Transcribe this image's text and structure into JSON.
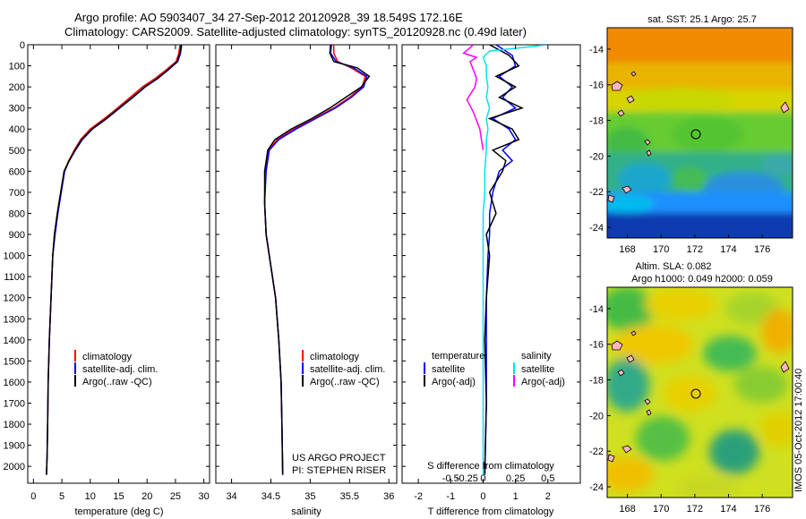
{
  "header": {
    "line1": "Argo profile: AO 5903407_34 27-Sep-2012 20120928_39 18.549S 172.16E",
    "line2": "Climatology: CARS2009. Satellite-adjusted climatology: synTS_20120928.nc (0.49d later)"
  },
  "colors": {
    "climatology": "#ff0000",
    "satellite": "#0000ff",
    "argo": "#000000",
    "salinity_satellite": "#00e5ee",
    "salinity_argo": "#ff00ff"
  },
  "chart_data": [
    {
      "type": "line",
      "name": "temperature",
      "xlabel": "temperature (deg C)",
      "ylabel": "",
      "xlim": [
        -1,
        31
      ],
      "ylim": [
        2080,
        0
      ],
      "xticks": [
        0,
        5,
        10,
        15,
        20,
        25,
        30
      ],
      "yticks": [
        0,
        100,
        200,
        300,
        400,
        500,
        600,
        700,
        800,
        900,
        1000,
        1100,
        1200,
        1300,
        1400,
        1500,
        1600,
        1700,
        1800,
        1900,
        2000
      ],
      "legend": [
        "climatology",
        "satellite-adj. clim.",
        "Argo(..raw -QC)"
      ],
      "series": [
        {
          "name": "climatology",
          "color": "#ff0000",
          "x": [
            25.8,
            25.6,
            25.1,
            23.3,
            21.4,
            19.2,
            17.0,
            14.8,
            12.5,
            10.0,
            8.3,
            7.2,
            6.2,
            5.4,
            4.8,
            4.2,
            3.7,
            3.4,
            3.1,
            2.8,
            2.6,
            2.5,
            2.4,
            2.3
          ],
          "y": [
            0,
            40,
            80,
            120,
            160,
            200,
            250,
            300,
            350,
            400,
            450,
            500,
            550,
            600,
            700,
            800,
            900,
            1000,
            1200,
            1400,
            1600,
            1800,
            1950,
            2040
          ]
        },
        {
          "name": "satellite-adj. clim.",
          "color": "#0000ff",
          "x": [
            26.1,
            25.9,
            25.4,
            23.7,
            21.9,
            19.7,
            17.5,
            15.2,
            12.9,
            10.4,
            8.6,
            7.4,
            6.3,
            5.5,
            4.9,
            4.3,
            3.8,
            3.4,
            3.1,
            2.8,
            2.6,
            2.5,
            2.4,
            2.3
          ],
          "y": [
            0,
            40,
            80,
            120,
            160,
            200,
            250,
            300,
            350,
            400,
            450,
            500,
            550,
            600,
            700,
            800,
            900,
            1000,
            1200,
            1400,
            1600,
            1800,
            1950,
            2040
          ]
        },
        {
          "name": "Argo(..raw -QC)",
          "color": "#000000",
          "x": [
            26.0,
            25.8,
            25.3,
            23.6,
            21.8,
            19.6,
            17.4,
            15.1,
            12.8,
            10.3,
            8.5,
            7.3,
            6.3,
            5.4,
            4.8,
            4.2,
            3.7,
            3.4,
            3.1,
            2.8,
            2.6,
            2.5,
            2.4,
            2.3
          ],
          "y": [
            0,
            40,
            80,
            120,
            160,
            200,
            250,
            300,
            350,
            400,
            450,
            500,
            550,
            600,
            700,
            800,
            900,
            1000,
            1200,
            1400,
            1600,
            1800,
            1950,
            2040
          ]
        }
      ]
    },
    {
      "type": "line",
      "name": "salinity",
      "xlabel": "salinity",
      "xlim": [
        33.8,
        36.1
      ],
      "ylim": [
        2080,
        0
      ],
      "xticks": [
        34,
        34.5,
        35,
        35.5,
        36
      ],
      "legend": [
        "climatology",
        "satellite-adj. clim.",
        "Argo(..raw -QC)"
      ],
      "annotation": [
        "US ARGO PROJECT",
        "PI: STEPHEN RISER"
      ],
      "series": [
        {
          "name": "climatology",
          "color": "#ff0000",
          "x": [
            35.3,
            35.3,
            35.35,
            35.52,
            35.7,
            35.66,
            35.5,
            35.3,
            35.05,
            34.8,
            34.58,
            34.47,
            34.43,
            34.42,
            34.44,
            34.48,
            34.52,
            34.56,
            34.6,
            34.63,
            34.64,
            34.65
          ],
          "y": [
            0,
            40,
            80,
            110,
            150,
            200,
            250,
            300,
            350,
            400,
            450,
            500,
            600,
            750,
            900,
            1000,
            1100,
            1200,
            1400,
            1600,
            1800,
            2040
          ]
        },
        {
          "name": "satellite-adj. clim.",
          "color": "#0000ff",
          "x": [
            35.27,
            35.26,
            35.33,
            35.55,
            35.72,
            35.68,
            35.52,
            35.32,
            35.07,
            34.82,
            34.6,
            34.48,
            34.44,
            34.42,
            34.44,
            34.48,
            34.52,
            34.56,
            34.6,
            34.63,
            34.64,
            34.65
          ],
          "y": [
            0,
            40,
            80,
            110,
            150,
            200,
            250,
            300,
            350,
            400,
            450,
            500,
            600,
            750,
            900,
            1000,
            1100,
            1200,
            1400,
            1600,
            1800,
            2040
          ]
        },
        {
          "name": "Argo(..raw -QC)",
          "color": "#000000",
          "x": [
            35.26,
            35.25,
            35.3,
            35.6,
            35.75,
            35.65,
            35.45,
            35.25,
            35.02,
            34.76,
            34.55,
            34.46,
            34.42,
            34.42,
            34.44,
            34.48,
            34.52,
            34.56,
            34.6,
            34.63,
            34.64,
            34.65
          ],
          "y": [
            0,
            40,
            80,
            110,
            150,
            200,
            250,
            300,
            350,
            400,
            450,
            500,
            600,
            750,
            900,
            1000,
            1100,
            1200,
            1400,
            1600,
            1800,
            2040
          ]
        }
      ]
    },
    {
      "type": "line",
      "name": "difference",
      "xlabel": "T difference from climatology",
      "xlabel_top": "S difference from climatology",
      "xlim": [
        -2.5,
        3.0
      ],
      "ylim": [
        2080,
        0
      ],
      "xticks": [
        -2,
        -1,
        0,
        1,
        2
      ],
      "s_ticks": [
        {
          "label": "-0.5",
          "t": -1.0
        },
        {
          "label": "-0.25",
          "t": -0.5
        },
        {
          "label": "0",
          "t": 0
        },
        {
          "label": "0.25",
          "t": 1.0
        },
        {
          "label": "0.5",
          "t": 2.0
        }
      ],
      "legend_temperature": [
        "temperature",
        "satellite",
        "Argo(-adj)"
      ],
      "legend_salinity": [
        "salinity",
        "satellite",
        "Argo(-adj)"
      ],
      "series": [
        {
          "name": "temperature satellite",
          "color": "#0000ff",
          "x": [
            0.4,
            0.9,
            1.0,
            0.5,
            0.9,
            0.6,
            1.0,
            0.3,
            0.8,
            1.0,
            0.6,
            0.9,
            0.5,
            0.3,
            0.2,
            0.2,
            0.15,
            0.1,
            0.1,
            0.1,
            0.05
          ],
          "y": [
            0,
            50,
            100,
            150,
            200,
            250,
            300,
            350,
            400,
            450,
            500,
            550,
            600,
            700,
            800,
            900,
            1000,
            1200,
            1400,
            1700,
            2040
          ]
        },
        {
          "name": "temperature Argo(-adj)",
          "color": "#000000",
          "x": [
            0.2,
            0.8,
            1.1,
            0.4,
            1.0,
            0.5,
            1.2,
            0.2,
            0.9,
            1.1,
            0.3,
            0.7,
            0.6,
            0.2,
            0.4,
            0.1,
            0.2,
            0.1,
            0.05,
            0.1,
            0.05
          ],
          "y": [
            0,
            50,
            100,
            150,
            200,
            250,
            300,
            350,
            400,
            450,
            500,
            550,
            600,
            700,
            800,
            900,
            1000,
            1200,
            1400,
            1700,
            2040
          ]
        },
        {
          "name": "salinity satellite",
          "color": "#00e5ee",
          "x": [
            2.0,
            0.2,
            0.0,
            0.1,
            0.1,
            0.15,
            0.1,
            0.2,
            0.1,
            0.15,
            0.1,
            0.1,
            0.05,
            0.05,
            0.0,
            0.0,
            0.0,
            0.0,
            0.0
          ],
          "y": [
            0,
            30,
            60,
            100,
            150,
            200,
            250,
            300,
            350,
            400,
            450,
            500,
            600,
            700,
            800,
            1000,
            1200,
            1600,
            2040
          ]
        },
        {
          "name": "salinity Argo(-adj)",
          "color": "#ff00ff",
          "x": [
            -0.3,
            -0.6,
            -0.2,
            -0.4,
            -0.3,
            -0.2,
            -0.25,
            -0.5,
            -0.3,
            -0.2,
            -0.1,
            -0.05,
            0.0
          ],
          "y": [
            0,
            40,
            60,
            80,
            120,
            160,
            200,
            260,
            320,
            360,
            400,
            450,
            500
          ]
        }
      ]
    },
    {
      "type": "heatmap",
      "name": "sst-map",
      "title": "sat. SST: 25.1 Argo: 25.7",
      "xlim": [
        166.8,
        177.8
      ],
      "ylim": [
        -24.6,
        -12.8
      ],
      "xticks": [
        168,
        170,
        172,
        174,
        176
      ],
      "yticks": [
        -14,
        -16,
        -18,
        -20,
        -22,
        -24
      ],
      "marker": {
        "lon": 172.16,
        "lat": -18.549
      }
    },
    {
      "type": "heatmap",
      "name": "sla-map",
      "title": "Altim. SLA: 0.082",
      "subtitle": "Argo h1000: 0.049 h2000: 0.059",
      "xlim": [
        166.8,
        177.8
      ],
      "ylim": [
        -24.6,
        -12.8
      ],
      "xticks": [
        168,
        170,
        172,
        174,
        176
      ],
      "yticks": [
        -14,
        -16,
        -18,
        -20,
        -22,
        -24
      ],
      "marker": {
        "lon": 172.16,
        "lat": -18.549
      }
    }
  ],
  "watermark": "IMOS 05-Oct-2012 17:00:40"
}
